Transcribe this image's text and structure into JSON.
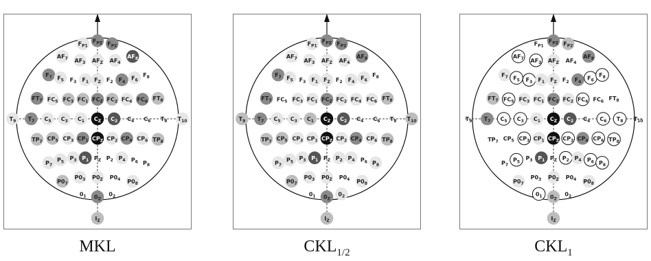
{
  "colors": {
    "black": "#111111",
    "dark": "#555555",
    "mid": "#8a8a8a",
    "light": "#bdbdbd",
    "pale": "#e6e6e6",
    "none": "#ffffff"
  },
  "electrodes": [
    {
      "id": "Fpz",
      "base": "F",
      "sub": "PZ",
      "gx": 0,
      "gy": -8
    },
    {
      "id": "Fp1",
      "base": "F",
      "sub": "P1",
      "gx": -1.5,
      "gy": -7.7
    },
    {
      "id": "Fp2",
      "base": "F",
      "sub": "P2",
      "gx": 1.5,
      "gy": -7.7
    },
    {
      "id": "AF7",
      "base": "AF",
      "sub": "7",
      "gx": -3.6,
      "gy": -6.4
    },
    {
      "id": "AF3",
      "base": "AF",
      "sub": "3",
      "gx": -1.8,
      "gy": -6.0
    },
    {
      "id": "AFz",
      "base": "AF",
      "sub": "Z",
      "gx": 0,
      "gy": -6.0
    },
    {
      "id": "AF4",
      "base": "AF",
      "sub": "4",
      "gx": 1.8,
      "gy": -6.0
    },
    {
      "id": "AF8",
      "base": "AF",
      "sub": "8",
      "gx": 3.6,
      "gy": -6.4
    },
    {
      "id": "F7",
      "base": "F",
      "sub": "7",
      "gx": -5.0,
      "gy": -4.5
    },
    {
      "id": "F5",
      "base": "F",
      "sub": "5",
      "gx": -3.8,
      "gy": -4.2
    },
    {
      "id": "F3",
      "base": "F",
      "sub": "3",
      "gx": -2.5,
      "gy": -4.0
    },
    {
      "id": "F1",
      "base": "F",
      "sub": "1",
      "gx": -1.25,
      "gy": -4.0
    },
    {
      "id": "Fz",
      "base": "F",
      "sub": "Z",
      "gx": 0,
      "gy": -4.0
    },
    {
      "id": "F2",
      "base": "F",
      "sub": "2",
      "gx": 1.25,
      "gy": -4.0
    },
    {
      "id": "F4",
      "base": "F",
      "sub": "4",
      "gx": 2.5,
      "gy": -4.0
    },
    {
      "id": "F6",
      "base": "F",
      "sub": "6",
      "gx": 3.8,
      "gy": -4.2
    },
    {
      "id": "F8",
      "base": "F",
      "sub": "8",
      "gx": 5.0,
      "gy": -4.5
    },
    {
      "id": "FT7",
      "base": "FT",
      "sub": "7",
      "gx": -6.2,
      "gy": -2.1
    },
    {
      "id": "FC5",
      "base": "FC",
      "sub": "5",
      "gx": -4.6,
      "gy": -2.0
    },
    {
      "id": "FC3",
      "base": "FC",
      "sub": "3",
      "gx": -3.0,
      "gy": -2.0
    },
    {
      "id": "FC1",
      "base": "FC",
      "sub": "1",
      "gx": -1.5,
      "gy": -2.0
    },
    {
      "id": "FCz",
      "base": "FC",
      "sub": "Z",
      "gx": 0,
      "gy": -2.0
    },
    {
      "id": "FC2",
      "base": "FC",
      "sub": "2",
      "gx": 1.5,
      "gy": -2.0
    },
    {
      "id": "FC4",
      "base": "FC",
      "sub": "4",
      "gx": 3.0,
      "gy": -2.0
    },
    {
      "id": "FC6",
      "base": "FC",
      "sub": "6",
      "gx": 4.6,
      "gy": -2.0
    },
    {
      "id": "FT8",
      "base": "FT",
      "sub": "8",
      "gx": 6.2,
      "gy": -2.1
    },
    {
      "id": "T9",
      "base": "T",
      "sub": "9",
      "gx": -8.7,
      "gy": 0
    },
    {
      "id": "T7",
      "base": "T",
      "sub": "7",
      "gx": -6.8,
      "gy": 0
    },
    {
      "id": "C5",
      "base": "C",
      "sub": "5",
      "gx": -5.1,
      "gy": 0
    },
    {
      "id": "C3",
      "base": "C",
      "sub": "3",
      "gx": -3.4,
      "gy": 0
    },
    {
      "id": "C1",
      "base": "C",
      "sub": "1",
      "gx": -1.7,
      "gy": 0
    },
    {
      "id": "Cz",
      "base": "C",
      "sub": "Z",
      "gx": 0,
      "gy": 0
    },
    {
      "id": "C2",
      "base": "C",
      "sub": "2",
      "gx": 1.7,
      "gy": 0
    },
    {
      "id": "C4",
      "base": "C",
      "sub": "4",
      "gx": 3.4,
      "gy": 0
    },
    {
      "id": "C6",
      "base": "C",
      "sub": "6",
      "gx": 5.1,
      "gy": 0
    },
    {
      "id": "T8",
      "base": "T",
      "sub": "8",
      "gx": 6.8,
      "gy": 0
    },
    {
      "id": "T10",
      "base": "T",
      "sub": "10",
      "gx": 8.7,
      "gy": 0
    },
    {
      "id": "TP7",
      "base": "TP",
      "sub": "7",
      "gx": -6.2,
      "gy": 2.1
    },
    {
      "id": "CP5",
      "base": "CP",
      "sub": "5",
      "gx": -4.6,
      "gy": 2.0
    },
    {
      "id": "CP3",
      "base": "CP",
      "sub": "3",
      "gx": -3.0,
      "gy": 2.0
    },
    {
      "id": "CP1",
      "base": "CP",
      "sub": "1",
      "gx": -1.5,
      "gy": 2.0
    },
    {
      "id": "CPz",
      "base": "CP",
      "sub": "Z",
      "gx": 0,
      "gy": 2.0
    },
    {
      "id": "CP2",
      "base": "CP",
      "sub": "2",
      "gx": 1.5,
      "gy": 2.0
    },
    {
      "id": "CP4",
      "base": "CP",
      "sub": "4",
      "gx": 3.0,
      "gy": 2.0
    },
    {
      "id": "CP6",
      "base": "CP",
      "sub": "6",
      "gx": 4.6,
      "gy": 2.0
    },
    {
      "id": "TP8",
      "base": "TP",
      "sub": "8",
      "gx": 6.2,
      "gy": 2.1
    },
    {
      "id": "P7",
      "base": "P",
      "sub": "7",
      "gx": -5.0,
      "gy": 4.5
    },
    {
      "id": "P5",
      "base": "P",
      "sub": "5",
      "gx": -3.8,
      "gy": 4.2
    },
    {
      "id": "P3",
      "base": "P",
      "sub": "3",
      "gx": -2.5,
      "gy": 4.0
    },
    {
      "id": "P1",
      "base": "P",
      "sub": "1",
      "gx": -1.25,
      "gy": 4.0
    },
    {
      "id": "Pz",
      "base": "P",
      "sub": "Z",
      "gx": 0,
      "gy": 4.0
    },
    {
      "id": "P2",
      "base": "P",
      "sub": "2",
      "gx": 1.25,
      "gy": 4.0
    },
    {
      "id": "P4",
      "base": "P",
      "sub": "4",
      "gx": 2.5,
      "gy": 4.0
    },
    {
      "id": "P6",
      "base": "P",
      "sub": "6",
      "gx": 3.8,
      "gy": 4.2
    },
    {
      "id": "P8",
      "base": "P",
      "sub": "8",
      "gx": 5.0,
      "gy": 4.5
    },
    {
      "id": "PO7",
      "base": "P0",
      "sub": "7",
      "gx": -3.6,
      "gy": 6.4
    },
    {
      "id": "PO3",
      "base": "P0",
      "sub": "3",
      "gx": -1.8,
      "gy": 6.0
    },
    {
      "id": "POz",
      "base": "P0",
      "sub": "Z",
      "gx": 0,
      "gy": 6.0
    },
    {
      "id": "PO4",
      "base": "P0",
      "sub": "4",
      "gx": 1.8,
      "gy": 6.0
    },
    {
      "id": "PO8",
      "base": "P0",
      "sub": "8",
      "gx": 3.6,
      "gy": 6.4
    },
    {
      "id": "O1",
      "base": "0",
      "sub": "1",
      "gx": -1.5,
      "gy": 7.7
    },
    {
      "id": "Oz",
      "base": "0",
      "sub": "Z",
      "gx": 0,
      "gy": 8.0
    },
    {
      "id": "O2",
      "base": "0",
      "sub": "2",
      "gx": 1.5,
      "gy": 7.7
    },
    {
      "id": "Iz",
      "base": "I",
      "sub": "Z",
      "gx": 0,
      "gy": 10.2
    }
  ],
  "panels": [
    {
      "caption_base": "MKL",
      "caption_sub": "",
      "shades": {
        "Fpz": "mid",
        "Fp1": "pale",
        "Fp2": "mid",
        "AF7": "pale",
        "AF3": "pale",
        "AFz": "pale",
        "AF4": "pale",
        "AF8": "dark",
        "F7": "mid",
        "F5": "pale",
        "F3": "none",
        "F1": "pale",
        "Fz": "pale",
        "F2": "none",
        "F4": "mid",
        "F6": "pale",
        "F8": "none",
        "FT7": "mid",
        "FC5": "pale",
        "FC3": "light",
        "FC1": "light",
        "FCz": "mid",
        "FC2": "light",
        "FC4": "pale",
        "FC6": "mid",
        "FT8": "light",
        "T9": "pale",
        "T7": "mid",
        "C5": "pale",
        "C3": "pale",
        "C1": "pale",
        "Cz": "black",
        "C2": "dark",
        "C4": "none",
        "C6": "none",
        "T8": "none",
        "T10": "pale",
        "TP7": "light",
        "CP5": "light",
        "CP3": "pale",
        "CP1": "mid",
        "CPz": "black",
        "CP2": "pale",
        "CP4": "mid",
        "CP6": "pale",
        "TP8": "light",
        "P7": "pale",
        "P5": "pale",
        "P3": "pale",
        "P1": "dark",
        "Pz": "none",
        "P2": "none",
        "P4": "pale",
        "P6": "none",
        "P8": "none",
        "PO7": "light",
        "PO3": "pale",
        "POz": "pale",
        "PO4": "none",
        "PO8": "pale",
        "O1": "none",
        "Oz": "mid",
        "O2": "none",
        "Iz": "light"
      },
      "circled": []
    },
    {
      "caption_base": "CKL",
      "caption_sub": "1/2",
      "shades": {
        "Fpz": "mid",
        "Fp1": "pale",
        "Fp2": "mid",
        "AF7": "pale",
        "AF3": "pale",
        "AFz": "pale",
        "AF4": "pale",
        "AF8": "mid",
        "F7": "mid",
        "F5": "pale",
        "F3": "none",
        "F1": "pale",
        "Fz": "pale",
        "F2": "none",
        "F4": "pale",
        "F6": "pale",
        "F8": "none",
        "FT7": "mid",
        "FC5": "none",
        "FC3": "pale",
        "FC1": "pale",
        "FCz": "mid",
        "FC2": "pale",
        "FC4": "pale",
        "FC6": "pale",
        "FT8": "light",
        "T9": "light",
        "T7": "mid",
        "C5": "pale",
        "C3": "pale",
        "C1": "light",
        "Cz": "black",
        "C2": "dark",
        "C4": "none",
        "C6": "none",
        "T8": "none",
        "T10": "light",
        "TP7": "light",
        "CP5": "light",
        "CP3": "pale",
        "CP1": "pale",
        "CPz": "black",
        "CP2": "pale",
        "CP4": "mid",
        "CP6": "pale",
        "TP8": "light",
        "P7": "pale",
        "P5": "pale",
        "P3": "pale",
        "P1": "dark",
        "Pz": "none",
        "P2": "pale",
        "P4": "pale",
        "P6": "none",
        "P8": "pale",
        "PO7": "light",
        "PO3": "pale",
        "POz": "pale",
        "PO4": "none",
        "PO8": "pale",
        "O1": "none",
        "Oz": "mid",
        "O2": "pale",
        "Iz": "light"
      },
      "circled": []
    },
    {
      "caption_base": "CKL",
      "caption_sub": "1",
      "shades": {
        "Fpz": "mid",
        "Fp1": "none",
        "Fp2": "light",
        "AF7": "none",
        "AF3": "none",
        "AFz": "pale",
        "AF4": "none",
        "AF8": "mid",
        "F7": "pale",
        "F5": "none",
        "F3": "none",
        "F1": "pale",
        "Fz": "pale",
        "F2": "none",
        "F4": "mid",
        "F6": "none",
        "F8": "none",
        "FT7": "light",
        "FC5": "none",
        "FC3": "pale",
        "FC1": "pale",
        "FCz": "mid",
        "FC2": "pale",
        "FC4": "none",
        "FC6": "none",
        "FT8": "none",
        "T9": "none",
        "T7": "mid",
        "C5": "none",
        "C3": "none",
        "C1": "pale",
        "Cz": "black",
        "C2": "dark",
        "C4": "none",
        "C6": "none",
        "T8": "none",
        "T10": "none",
        "TP7": "none",
        "CP5": "none",
        "CP3": "none",
        "CP1": "pale",
        "CPz": "black",
        "CP2": "none",
        "CP4": "mid",
        "CP6": "none",
        "TP8": "none",
        "P7": "none",
        "P5": "none",
        "P3": "none",
        "P1": "dark",
        "Pz": "none",
        "P2": "none",
        "P4": "pale",
        "P6": "none",
        "P8": "none",
        "PO7": "pale",
        "PO3": "none",
        "POz": "pale",
        "PO4": "none",
        "PO8": "pale",
        "O1": "none",
        "Oz": "light",
        "O2": "none",
        "Iz": "light"
      },
      "circled": [
        "AF7",
        "AF3",
        "F5",
        "F3",
        "F6",
        "F8",
        "FC5",
        "FC4",
        "C5",
        "C3",
        "C6",
        "T8",
        "CP3",
        "CP2",
        "CP6",
        "TP8",
        "P5",
        "P2",
        "P6",
        "P8",
        "O1"
      ]
    }
  ]
}
